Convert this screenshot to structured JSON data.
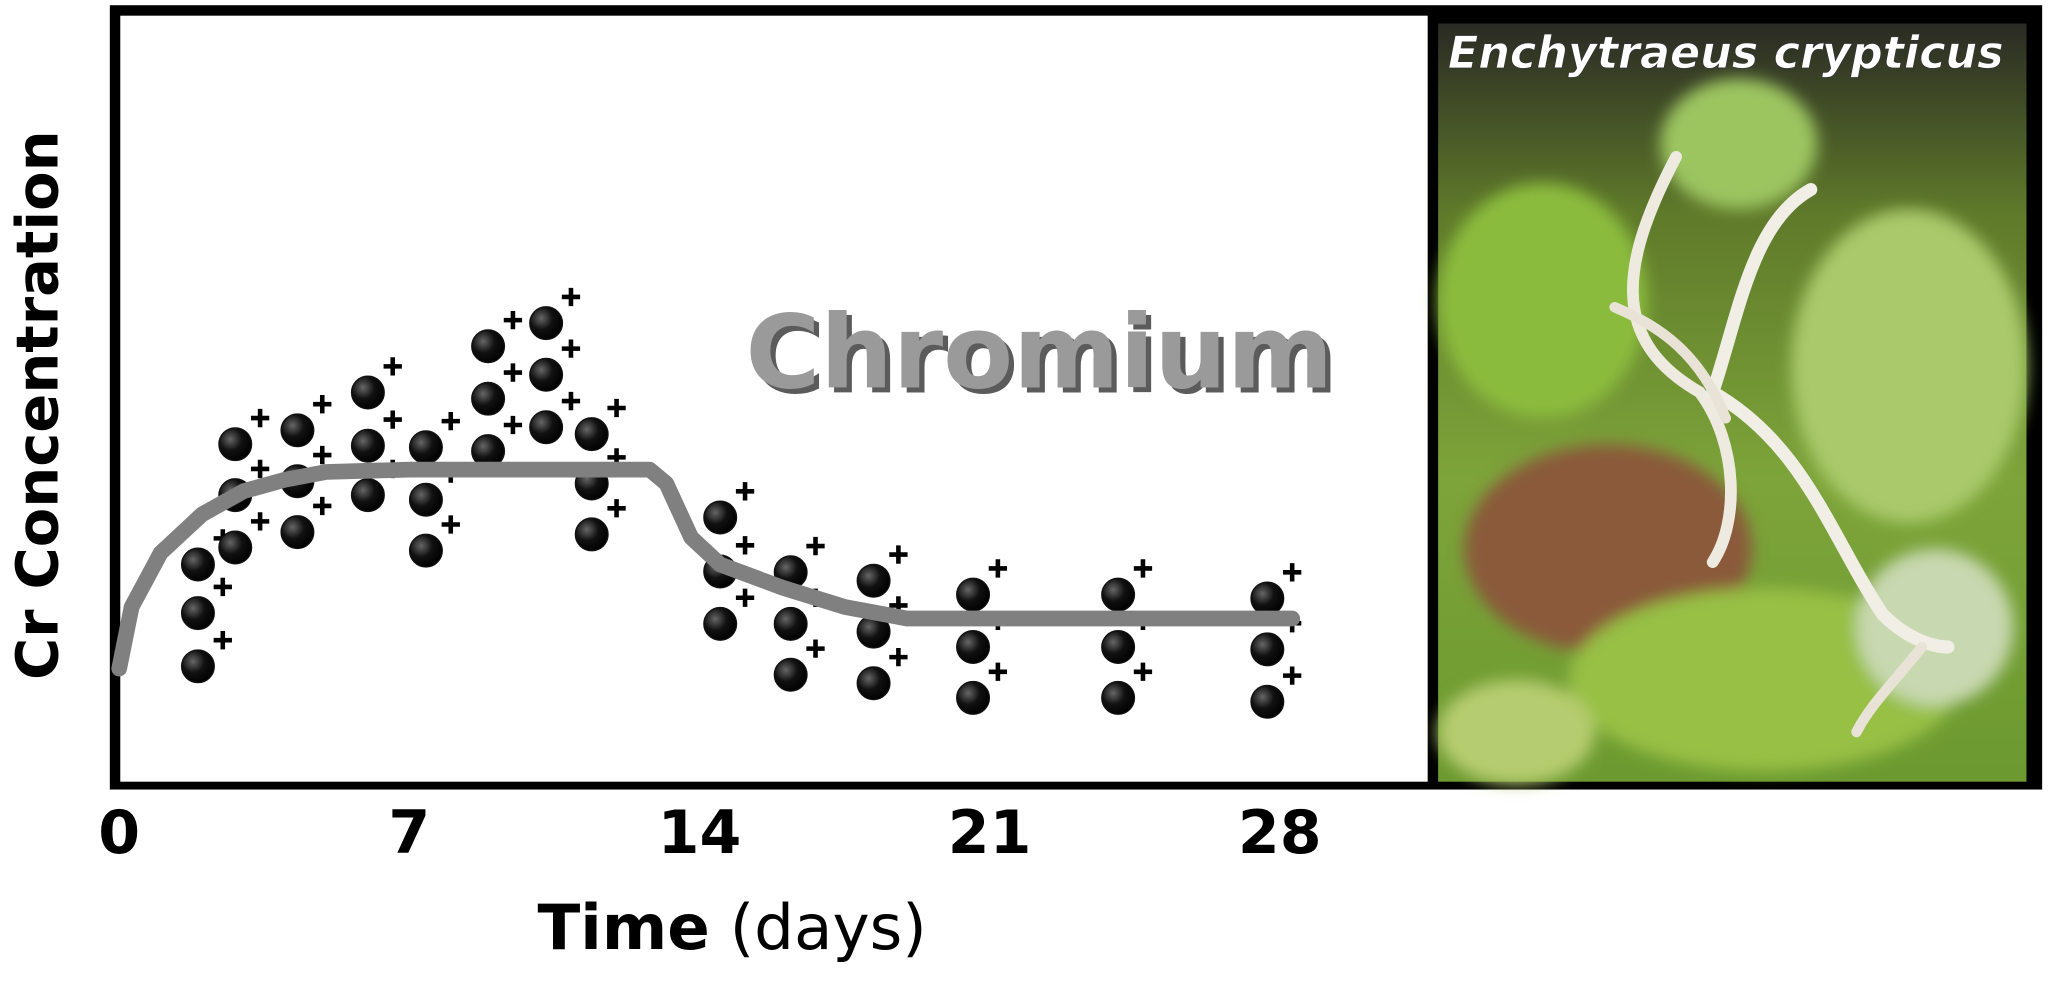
{
  "chart_data": {
    "title": "Chromium",
    "photo_label": "Enchytraeus crypticus",
    "y_label": "Cr Concentration",
    "x_label": "Time",
    "x_label_unit": "(days)",
    "xlim": [
      -0.1,
      31.6
    ],
    "ylim": [
      0,
      10
    ],
    "xticks": [
      0,
      7,
      14,
      21,
      28
    ],
    "series": [
      {
        "type": "scatter",
        "color": "#111111",
        "x": [
          1.9,
          1.9,
          1.9,
          2.8,
          2.8,
          2.8,
          4.3,
          4.3,
          4.3,
          6.0,
          6.0,
          6.0,
          7.4,
          7.4,
          7.4,
          8.9,
          8.9,
          8.9,
          10.3,
          10.3,
          10.3,
          11.4,
          11.4,
          11.4,
          14.5,
          14.5,
          14.5,
          16.2,
          16.2,
          16.2,
          18.2,
          18.2,
          18.2,
          20.6,
          20.6,
          20.6,
          24.1,
          24.1,
          24.1,
          27.7,
          27.7,
          27.7
        ],
        "values": [
          2.85,
          2.22,
          1.53,
          4.41,
          3.75,
          3.07,
          4.59,
          3.93,
          3.27,
          5.08,
          4.39,
          3.75,
          4.37,
          3.69,
          3.03,
          5.68,
          5.0,
          4.32,
          5.98,
          5.31,
          4.63,
          4.54,
          3.9,
          3.24,
          3.46,
          2.76,
          2.08,
          2.75,
          2.08,
          1.42,
          2.64,
          1.98,
          1.31,
          2.46,
          1.78,
          1.12,
          2.46,
          1.78,
          1.12,
          2.41,
          1.75,
          1.07
        ]
      },
      {
        "type": "line",
        "color": "#808080",
        "x": [
          0,
          0.3,
          1,
          2,
          3,
          4,
          5,
          7,
          10,
          12.8,
          13.2,
          13.8,
          14.5,
          16,
          17.5,
          19,
          24,
          28.3
        ],
        "values": [
          1.5,
          2.3,
          3.0,
          3.5,
          3.8,
          3.95,
          4.05,
          4.08,
          4.08,
          4.08,
          3.9,
          3.2,
          2.85,
          2.55,
          2.3,
          2.15,
          2.15,
          2.15
        ]
      }
    ]
  }
}
